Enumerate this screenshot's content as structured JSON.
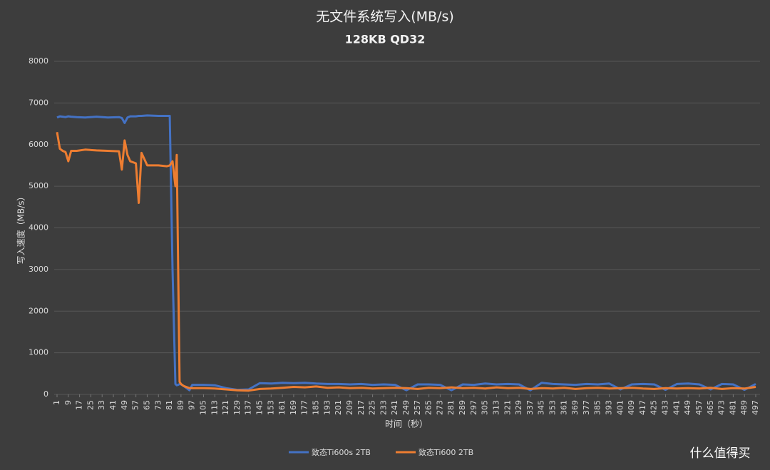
{
  "chart_data": {
    "type": "line",
    "title": "无文件系统写入(MB/s)",
    "subtitle": "128KB QD32",
    "y_label": "写入速度（MB/s）",
    "x_label": "时间（秒）",
    "watermark": "什么值得买",
    "x": [
      1,
      3,
      5,
      7,
      9,
      11,
      15,
      21,
      29,
      37,
      45,
      47,
      49,
      51,
      53,
      57,
      59,
      61,
      65,
      73,
      79,
      81,
      83,
      85,
      86,
      87,
      88,
      89,
      91,
      95,
      97,
      105,
      113,
      121,
      129,
      137,
      145,
      153,
      161,
      169,
      177,
      185,
      193,
      201,
      209,
      217,
      225,
      233,
      241,
      249,
      257,
      265,
      273,
      281,
      289,
      297,
      305,
      313,
      321,
      329,
      337,
      345,
      353,
      361,
      369,
      377,
      385,
      393,
      401,
      409,
      417,
      425,
      433,
      441,
      449,
      457,
      465,
      473,
      481,
      489,
      497
    ],
    "series": [
      {
        "name": "致态Ti600s 2TB",
        "color": "#4472c4",
        "values": [
          6650,
          6680,
          6670,
          6660,
          6680,
          6670,
          6660,
          6650,
          6670,
          6650,
          6660,
          6640,
          6520,
          6650,
          6680,
          6680,
          6690,
          6690,
          6700,
          6690,
          6690,
          6690,
          3000,
          250,
          220,
          230,
          250,
          240,
          200,
          100,
          230,
          230,
          220,
          150,
          110,
          120,
          270,
          260,
          280,
          270,
          280,
          260,
          250,
          250,
          240,
          250,
          230,
          240,
          230,
          100,
          240,
          240,
          230,
          100,
          240,
          230,
          260,
          240,
          250,
          240,
          100,
          280,
          250,
          240,
          230,
          250,
          240,
          260,
          120,
          240,
          250,
          240,
          110,
          250,
          260,
          240,
          120,
          250,
          240,
          110,
          250
        ]
      },
      {
        "name": "致态Ti600 2TB",
        "color": "#ed7d31",
        "values": [
          6300,
          5900,
          5850,
          5820,
          5600,
          5850,
          5850,
          5880,
          5860,
          5850,
          5840,
          5400,
          6100,
          5750,
          5600,
          5550,
          4600,
          5800,
          5500,
          5500,
          5480,
          5500,
          5600,
          5000,
          5750,
          3000,
          300,
          250,
          200,
          150,
          150,
          150,
          140,
          120,
          100,
          90,
          130,
          140,
          160,
          180,
          170,
          190,
          160,
          170,
          150,
          160,
          140,
          150,
          160,
          150,
          130,
          160,
          150,
          170,
          150,
          160,
          140,
          170,
          150,
          160,
          130,
          150,
          140,
          160,
          130,
          150,
          160,
          140,
          150,
          160,
          140,
          130,
          150,
          140,
          150,
          140,
          160,
          130,
          150,
          140,
          180
        ]
      }
    ],
    "xlim": [
      1,
      497
    ],
    "xticks": [
      1,
      9,
      17,
      25,
      33,
      41,
      49,
      57,
      65,
      73,
      81,
      89,
      97,
      105,
      113,
      121,
      129,
      137,
      145,
      153,
      161,
      169,
      177,
      185,
      193,
      201,
      209,
      217,
      225,
      233,
      241,
      249,
      257,
      265,
      273,
      281,
      289,
      297,
      305,
      313,
      321,
      329,
      337,
      345,
      353,
      361,
      369,
      377,
      385,
      393,
      401,
      409,
      417,
      425,
      433,
      441,
      449,
      457,
      465,
      473,
      481,
      489,
      497
    ],
    "ylim": [
      0,
      8000
    ],
    "yticks": [
      0,
      1000,
      2000,
      3000,
      4000,
      5000,
      6000,
      7000,
      8000
    ],
    "grid": true
  }
}
